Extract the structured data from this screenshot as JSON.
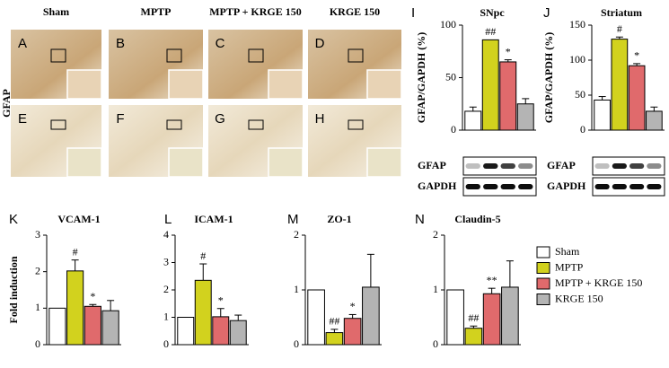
{
  "micrographs": {
    "columns": [
      "Sham",
      "MPTP",
      "MPTP + KRGE 150",
      "KRGE 150"
    ],
    "row_label": "GFAP",
    "panels": [
      "A",
      "B",
      "C",
      "D",
      "E",
      "F",
      "G",
      "H"
    ]
  },
  "legend": [
    {
      "name": "Sham",
      "color": "#ffffff"
    },
    {
      "name": "MPTP",
      "color": "#d2d21e"
    },
    {
      "name": "MPTP + KRGE  150",
      "color": "#e06a6c"
    },
    {
      "name": "KRGE  150",
      "color": "#b4b4b4"
    }
  ],
  "chart_data": [
    {
      "type": "bar",
      "panel": "I",
      "title": "SNpc",
      "ylabel": "GFAP/GAPDH (%)",
      "values": [
        18,
        86,
        65,
        25
      ],
      "errors": [
        4,
        null,
        2,
        5
      ],
      "annotations": [
        null,
        "##",
        "*",
        null
      ],
      "ylim": [
        0,
        100
      ],
      "yticks": [
        0,
        50,
        100
      ],
      "blot_labels": [
        "GFAP",
        "GAPDH"
      ]
    },
    {
      "type": "bar",
      "panel": "J",
      "title": "Striatum",
      "ylabel": "GFAP/GAPDH (%)",
      "values": [
        43,
        130,
        92,
        27
      ],
      "errors": [
        5,
        3,
        3,
        6
      ],
      "annotations": [
        null,
        "#",
        "*",
        null
      ],
      "ylim": [
        0,
        150
      ],
      "yticks": [
        0,
        50,
        100,
        150
      ],
      "blot_labels": [
        "GFAP",
        "GAPDH"
      ]
    },
    {
      "type": "bar",
      "panel": "K",
      "title": "VCAM-1",
      "ylabel": "Fold induction",
      "values": [
        1,
        2.02,
        1.05,
        0.93
      ],
      "errors": [
        null,
        0.3,
        0.05,
        0.28
      ],
      "annotations": [
        null,
        "#",
        "*",
        null
      ],
      "ylim": [
        0,
        3
      ],
      "yticks": [
        0,
        1,
        2,
        3
      ]
    },
    {
      "type": "bar",
      "panel": "L",
      "title": "ICAM-1",
      "values": [
        1,
        2.35,
        1.02,
        0.88
      ],
      "errors": [
        null,
        0.6,
        0.3,
        0.2
      ],
      "annotations": [
        null,
        "#",
        "*",
        null
      ],
      "ylim": [
        0,
        4
      ],
      "yticks": [
        0,
        1,
        2,
        3,
        4
      ]
    },
    {
      "type": "bar",
      "panel": "M",
      "title": "ZO-1",
      "values": [
        1,
        0.22,
        0.48,
        1.05
      ],
      "errors": [
        null,
        0.06,
        0.07,
        0.6
      ],
      "annotations": [
        null,
        "##",
        "*",
        null
      ],
      "ylim": [
        0,
        2
      ],
      "yticks": [
        0,
        1,
        2
      ]
    },
    {
      "type": "bar",
      "panel": "N",
      "title": "Claudin-5",
      "values": [
        1,
        0.3,
        0.93,
        1.05
      ],
      "errors": [
        null,
        0.04,
        0.1,
        0.48
      ],
      "annotations": [
        null,
        "##",
        "**",
        null
      ],
      "ylim": [
        0,
        2
      ],
      "yticks": [
        0,
        1,
        2
      ]
    }
  ]
}
